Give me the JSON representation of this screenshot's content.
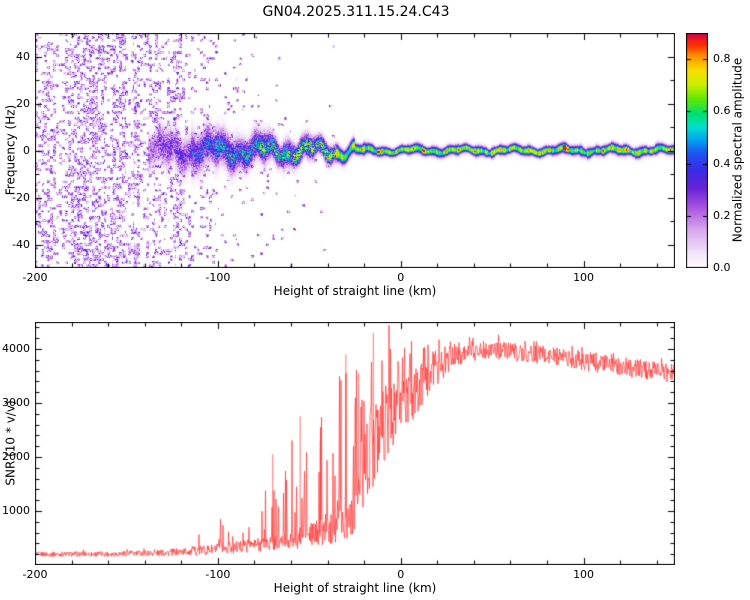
{
  "title": "GN04.2025.311.15.24.C43",
  "chart_data": [
    {
      "type": "heatmap",
      "name": "spectrogram",
      "xlabel": "Height of straight line (km)",
      "ylabel": "Frequency (Hz)",
      "xlim": [
        -200,
        150
      ],
      "ylim": [
        -50,
        50
      ],
      "xticks": {
        "values": [
          -200,
          -100,
          0,
          100
        ],
        "labels": [
          "-200",
          "-100",
          "0",
          "100"
        ]
      },
      "yticks": {
        "values": [
          -40,
          -20,
          0,
          20,
          40
        ],
        "labels": [
          "-40",
          "-20",
          "0",
          "20",
          "40"
        ]
      },
      "minor_x_step": 20,
      "minor_y_step": 10,
      "colorbar": {
        "label": "Normalized spectral amplitude",
        "range": [
          0,
          0.9
        ],
        "ticks": {
          "values": [
            0,
            0.2,
            0.4,
            0.6,
            0.8
          ],
          "labels": [
            "0.0",
            "0.2",
            "0.4",
            "0.6",
            "0.8"
          ]
        },
        "gradient": [
          {
            "v": 0.0,
            "c": "#ffffff"
          },
          {
            "v": 0.06,
            "c": "#f3e6f9"
          },
          {
            "v": 0.16,
            "c": "#d9a9ec"
          },
          {
            "v": 0.26,
            "c": "#a855e0"
          },
          {
            "v": 0.34,
            "c": "#6a22d8"
          },
          {
            "v": 0.42,
            "c": "#3a2ae4"
          },
          {
            "v": 0.49,
            "c": "#1f55f2"
          },
          {
            "v": 0.55,
            "c": "#00a6f0"
          },
          {
            "v": 0.6,
            "c": "#00ddcf"
          },
          {
            "v": 0.66,
            "c": "#00e070"
          },
          {
            "v": 0.72,
            "c": "#5fe800"
          },
          {
            "v": 0.78,
            "c": "#c8ef00"
          },
          {
            "v": 0.84,
            "c": "#f8df00"
          },
          {
            "v": 0.9,
            "c": "#ff9700"
          },
          {
            "v": 0.95,
            "c": "#ff3000"
          },
          {
            "v": 1.0,
            "c": "#d60048"
          }
        ]
      },
      "features": {
        "noise_region": {
          "x_from": -200,
          "x_to": -90,
          "amplitude_range": [
            0.05,
            0.35
          ],
          "description": "dense broadband purple speckle noise filling all frequencies, density fades out between -130 and -90 km"
        },
        "signal_band": {
          "center_hz": 0,
          "forms_at_km": -135,
          "narrow_after_km": -20,
          "halfwidth_hz_start": 9,
          "halfwidth_hz_end": 2.3,
          "amplitude_at_-100km": 0.42,
          "amplitude_at_-60km": 0.58,
          "amplitude_plateau": 0.68,
          "hot_spot_amplitude": 0.88,
          "description": "diffuse turbulent band near 0 Hz converging into a narrow continuous green/yellow line with sporadic red hot spots for heights > -20 km"
        }
      }
    },
    {
      "type": "line",
      "name": "snr",
      "xlabel": "Height of straight line (km)",
      "ylabel": "SNR (10 * v/v)",
      "xlim": [
        -200,
        150
      ],
      "ylim": [
        0,
        4500
      ],
      "xticks": {
        "values": [
          -200,
          -100,
          0,
          100
        ],
        "labels": [
          "-200",
          "-100",
          "0",
          "100"
        ]
      },
      "yticks": {
        "values": [
          1000,
          2000,
          3000,
          4000
        ],
        "labels": [
          "1000",
          "2000",
          "3000",
          "4000"
        ]
      },
      "minor_x_step": 20,
      "minor_y_step": 200,
      "series": [
        {
          "name": "SNR",
          "color": "#ff3333",
          "envelope": [
            {
              "x": -200,
              "mean": 200,
              "jitter": 45,
              "spike": 0,
              "p": 0
            },
            {
              "x": -160,
              "mean": 205,
              "jitter": 50,
              "spike": 80,
              "p": 0.04
            },
            {
              "x": -130,
              "mean": 225,
              "jitter": 60,
              "spike": 150,
              "p": 0.07
            },
            {
              "x": -110,
              "mean": 265,
              "jitter": 85,
              "spike": 350,
              "p": 0.11
            },
            {
              "x": -95,
              "mean": 310,
              "jitter": 105,
              "spike": 550,
              "p": 0.14
            },
            {
              "x": -80,
              "mean": 370,
              "jitter": 130,
              "spike": 950,
              "p": 0.17
            },
            {
              "x": -70,
              "mean": 410,
              "jitter": 150,
              "spike": 1350,
              "p": 0.19
            },
            {
              "x": -60,
              "mean": 470,
              "jitter": 180,
              "spike": 1800,
              "p": 0.21
            },
            {
              "x": -50,
              "mean": 550,
              "jitter": 220,
              "spike": 2100,
              "p": 0.22
            },
            {
              "x": -40,
              "mean": 640,
              "jitter": 260,
              "spike": 1900,
              "p": 0.24
            },
            {
              "x": -32,
              "mean": 800,
              "jitter": 350,
              "spike": 2900,
              "p": 0.28
            },
            {
              "x": -26,
              "mean": 1000,
              "jitter": 450,
              "spike": 2600,
              "p": 0.3
            },
            {
              "x": -20,
              "mean": 1750,
              "jitter": 700,
              "spike": 1900,
              "p": 0.33
            },
            {
              "x": -14,
              "mean": 2350,
              "jitter": 800,
              "spike": 1800,
              "p": 0.3
            },
            {
              "x": -8,
              "mean": 2650,
              "jitter": 700,
              "spike": 1400,
              "p": 0.3
            },
            {
              "x": 0,
              "mean": 2950,
              "jitter": 600,
              "spike": 950,
              "p": 0.3
            },
            {
              "x": 8,
              "mean": 3150,
              "jitter": 500,
              "spike": 750,
              "p": 0.3
            },
            {
              "x": 16,
              "mean": 3500,
              "jitter": 400,
              "spike": 550,
              "p": 0.28
            },
            {
              "x": 25,
              "mean": 3800,
              "jitter": 260,
              "spike": 320,
              "p": 0.28
            },
            {
              "x": 35,
              "mean": 3950,
              "jitter": 190,
              "spike": 160,
              "p": 0.28
            },
            {
              "x": 50,
              "mean": 3990,
              "jitter": 170,
              "spike": 130,
              "p": 0.28
            },
            {
              "x": 70,
              "mean": 3910,
              "jitter": 170,
              "spike": 130,
              "p": 0.28
            },
            {
              "x": 90,
              "mean": 3830,
              "jitter": 180,
              "spike": 140,
              "p": 0.28
            },
            {
              "x": 110,
              "mean": 3730,
              "jitter": 180,
              "spike": 140,
              "p": 0.28
            },
            {
              "x": 130,
              "mean": 3630,
              "jitter": 180,
              "spike": 140,
              "p": 0.28
            },
            {
              "x": 150,
              "mean": 3530,
              "jitter": 180,
              "spike": 140,
              "p": 0.28
            }
          ],
          "peaks": [
            {
              "x": -15,
              "y": 4300
            },
            {
              "x": -23,
              "y": 3550
            },
            {
              "x": -30,
              "y": 3900
            },
            {
              "x": -44,
              "y": 2300
            },
            {
              "x": -55,
              "y": 2750
            },
            {
              "x": -70,
              "y": 2050
            }
          ]
        }
      ]
    }
  ]
}
